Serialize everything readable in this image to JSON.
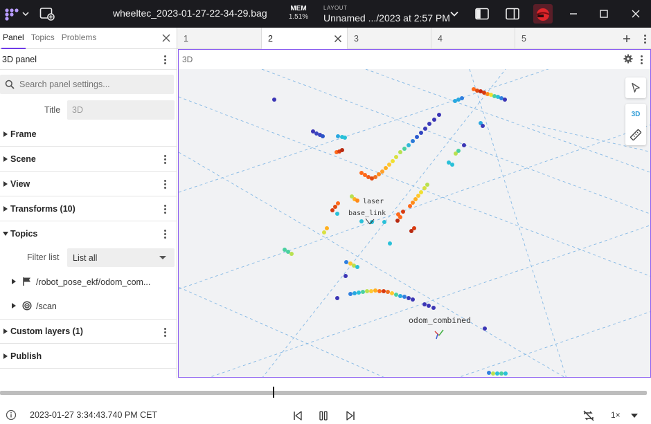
{
  "appbar": {
    "file_title": "wheeltec_2023-01-27-22-34-29.bag",
    "mem_label": "MEM",
    "mem_value": "1.51%",
    "layout_label": "LAYOUT",
    "layout_name": "Unnamed .../2023 at 2:57 PM"
  },
  "left": {
    "tabs": [
      "Panel",
      "Topics",
      "Problems"
    ],
    "panel_name": "3D panel",
    "search_placeholder": "Search panel settings...",
    "title_label": "Title",
    "title_value": "3D",
    "sections": {
      "frame": "Frame",
      "scene": "Scene",
      "view": "View",
      "transforms": "Transforms (10)",
      "topics": "Topics",
      "custom_layers": "Custom layers (1)",
      "publish": "Publish"
    },
    "filter_label": "Filter list",
    "filter_value": "List all",
    "topic_items": [
      "/robot_pose_ekf/odom_com...",
      "/scan"
    ]
  },
  "tabs": [
    "1",
    "2",
    "3",
    "4",
    "5"
  ],
  "viewport": {
    "panel_title": "3D",
    "mode_3d": "3D",
    "frame_labels": {
      "laser": "laser",
      "base_link": "base_link",
      "odom": "odom_combined"
    }
  },
  "playback": {
    "timestamp": "2023-01-27 3:34:43.740 PM CET",
    "speed": "1×"
  },
  "colors": {
    "accent": "#6f3be8",
    "appbar": "#1b1b1f",
    "viewport_border": "#8a5cf0",
    "grid": "#7fb7e6"
  }
}
